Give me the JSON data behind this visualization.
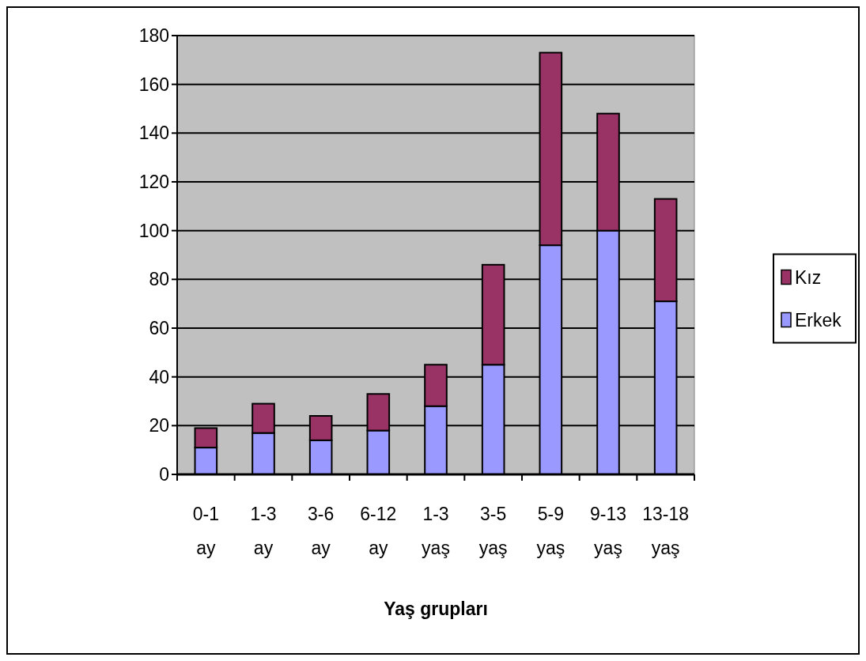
{
  "chart_data": {
    "type": "bar",
    "xlabel": "Yaş grupları",
    "categories": [
      "0-1 ay",
      "1-3 ay",
      "3-6 ay",
      "6-12 ay",
      "1-3 yaş",
      "3-5 yaş",
      "5-9 yaş",
      "9-13 yaş",
      "13-18 yaş"
    ],
    "stacked": true,
    "series": [
      {
        "name": "Erkek",
        "color": "#9999ff",
        "values": [
          11,
          17,
          14,
          18,
          28,
          45,
          94,
          100,
          71
        ]
      },
      {
        "name": "Kız",
        "color": "#993366",
        "values": [
          8,
          12,
          10,
          15,
          17,
          41,
          79,
          48,
          42
        ]
      }
    ],
    "ylim": [
      0,
      180
    ],
    "yticks": [
      0,
      20,
      40,
      60,
      80,
      100,
      120,
      140,
      160,
      180
    ],
    "grid": "y",
    "legend": "right"
  }
}
